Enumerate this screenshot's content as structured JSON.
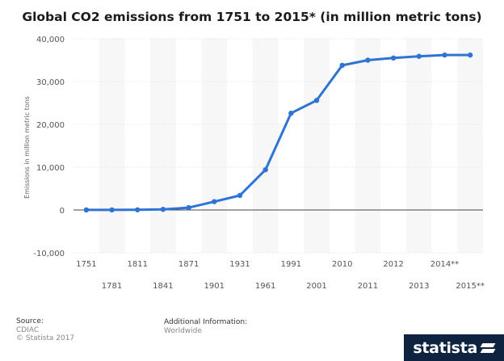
{
  "title": "Global CO2 emissions from 1751 to 2015* (in million metric tons)",
  "footer": {
    "source_label": "Source:",
    "source_name": "CDIAC",
    "copyright": "© Statista 2017",
    "info_label": "Additional Information:",
    "info_value": "Worldwide"
  },
  "brand": {
    "name": "statista"
  },
  "colors": {
    "line": "#2e74d4",
    "zero_line": "#444444",
    "grid": "#e2e2e2",
    "band": "#f7f7f7",
    "tick_text": "#555555"
  },
  "chart_data": {
    "type": "line",
    "title": "Global CO2 emissions from 1751 to 2015* (in million metric tons)",
    "xlabel": "",
    "ylabel": "Emissions in million metric tons",
    "ylim": [
      -10000,
      40000
    ],
    "yticks": [
      -10000,
      0,
      10000,
      20000,
      30000,
      40000
    ],
    "ytick_labels": [
      "-10,000",
      "0",
      "10,000",
      "20,000",
      "30,000",
      "40,000"
    ],
    "grid": true,
    "categories": [
      "1751",
      "1781",
      "1811",
      "1841",
      "1871",
      "1901",
      "1931",
      "1961",
      "1991",
      "2001",
      "2010",
      "2011",
      "2012",
      "2013",
      "2014**",
      "2015**"
    ],
    "series": [
      {
        "values": [
          11,
          18,
          39,
          145,
          550,
          1950,
          3400,
          9400,
          22600,
          25600,
          33800,
          35000,
          35500,
          35900,
          36200,
          36200
        ]
      }
    ]
  }
}
